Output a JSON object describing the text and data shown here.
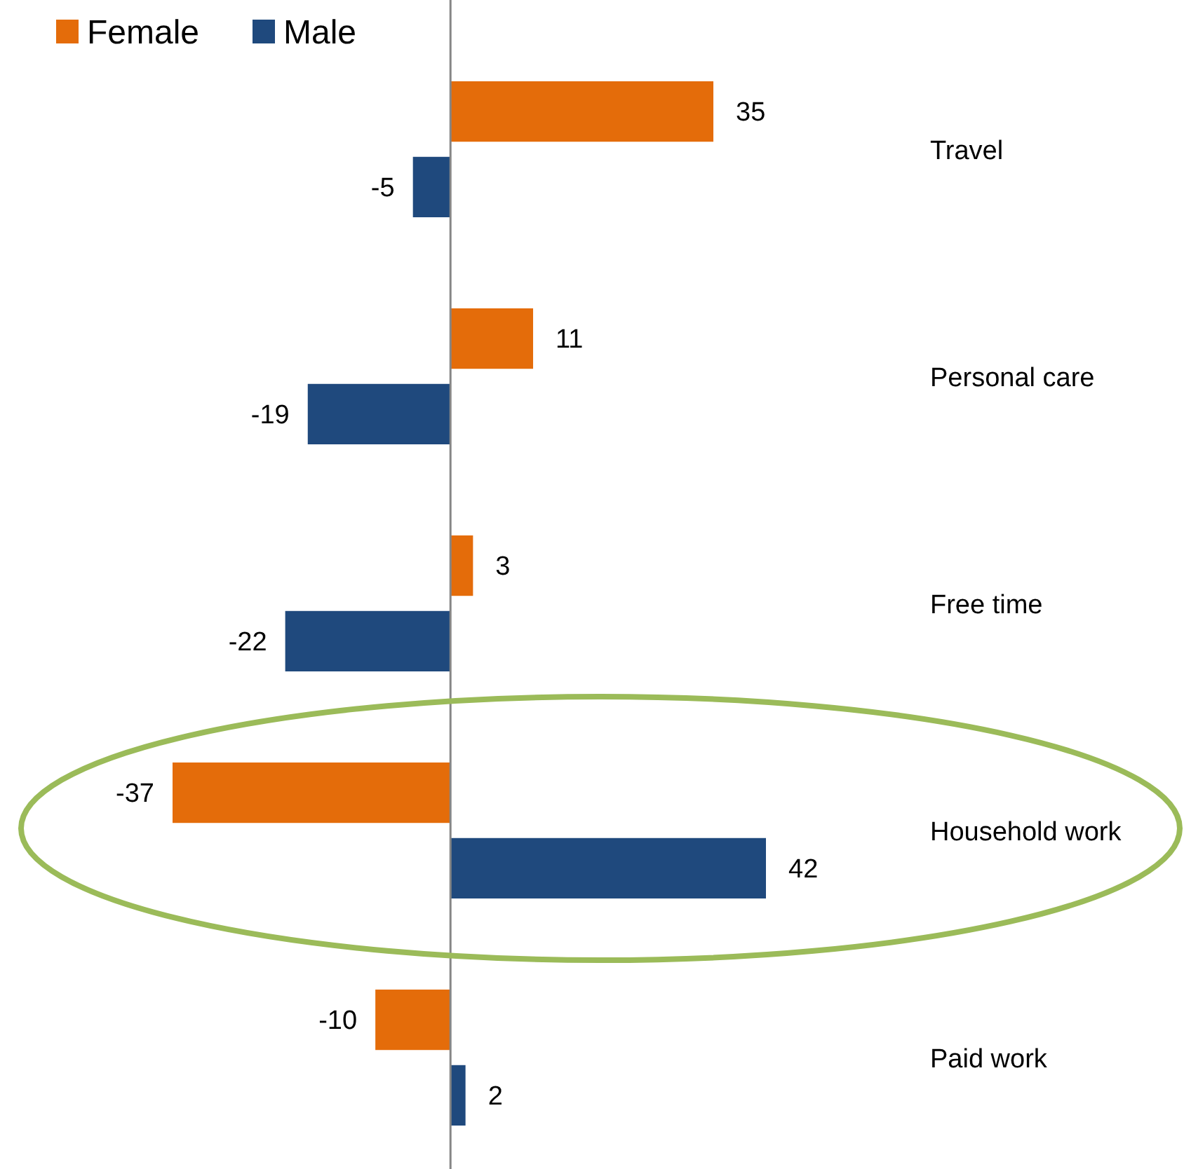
{
  "chart_data": {
    "type": "bar",
    "orientation": "horizontal",
    "categories": [
      "Travel",
      "Personal care",
      "Free time",
      "Household work",
      "Paid work"
    ],
    "series": [
      {
        "name": "Female",
        "color": "#e46c0a",
        "values": [
          35,
          11,
          3,
          -37,
          -10
        ]
      },
      {
        "name": "Male",
        "color": "#1f497d",
        "values": [
          -5,
          -19,
          -22,
          42,
          2
        ]
      }
    ],
    "data_labels": true,
    "legend": "top left"
  }
}
